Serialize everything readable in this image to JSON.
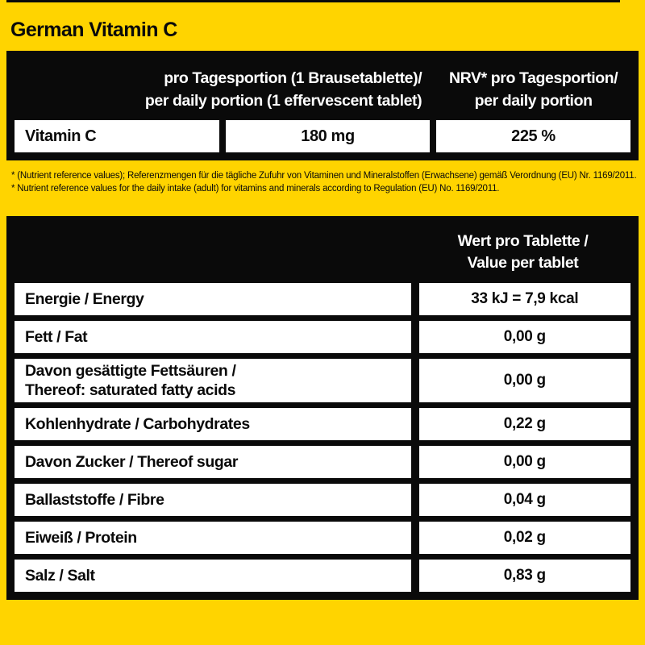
{
  "page": {
    "title": "German Vitamin C",
    "background_color": "#ffd400",
    "table_color": "#0a0a0a",
    "cell_color": "#ffffff"
  },
  "nrv_table": {
    "header_portion_line1": "pro Tagesportion (1 Brausetablette)/",
    "header_portion_line2": "per daily portion (1 effervescent tablet)",
    "header_nrv_line1": "NRV* pro Tagesportion/",
    "header_nrv_line2": "per daily portion",
    "rows": [
      {
        "label": "Vitamin C",
        "amount": "180 mg",
        "nrv": "225 %"
      }
    ]
  },
  "footnotes": {
    "line1": "* (Nutrient reference values); Referenzmengen für die tägliche Zufuhr von Vitaminen und Mineralstoffen (Erwachsene) gemäß Verordnung (EU) Nr. 1169/2011.",
    "line2": "* Nutrient reference values for the daily intake (adult) for vitamins and minerals according to Regulation (EU) No. 1169/2011."
  },
  "nutrition_table": {
    "header_line1": "Wert pro Tablette /",
    "header_line2": "Value per tablet",
    "rows": [
      {
        "label": "Energie / Energy",
        "label2": "",
        "value": "33 kJ = 7,9 kcal"
      },
      {
        "label": "Fett / Fat",
        "label2": "",
        "value": "0,00 g"
      },
      {
        "label": "Davon gesättigte Fettsäuren /",
        "label2": "Thereof: saturated fatty acids",
        "value": "0,00 g"
      },
      {
        "label": "Kohlenhydrate / Carbohydrates",
        "label2": "",
        "value": "0,22 g"
      },
      {
        "label": "Davon Zucker / Thereof sugar",
        "label2": "",
        "value": "0,00 g"
      },
      {
        "label": "Ballaststoffe / Fibre",
        "label2": "",
        "value": "0,04 g"
      },
      {
        "label": "Eiweiß / Protein",
        "label2": "",
        "value": "0,02 g"
      },
      {
        "label": "Salz / Salt",
        "label2": "",
        "value": "0,83 g"
      }
    ]
  }
}
